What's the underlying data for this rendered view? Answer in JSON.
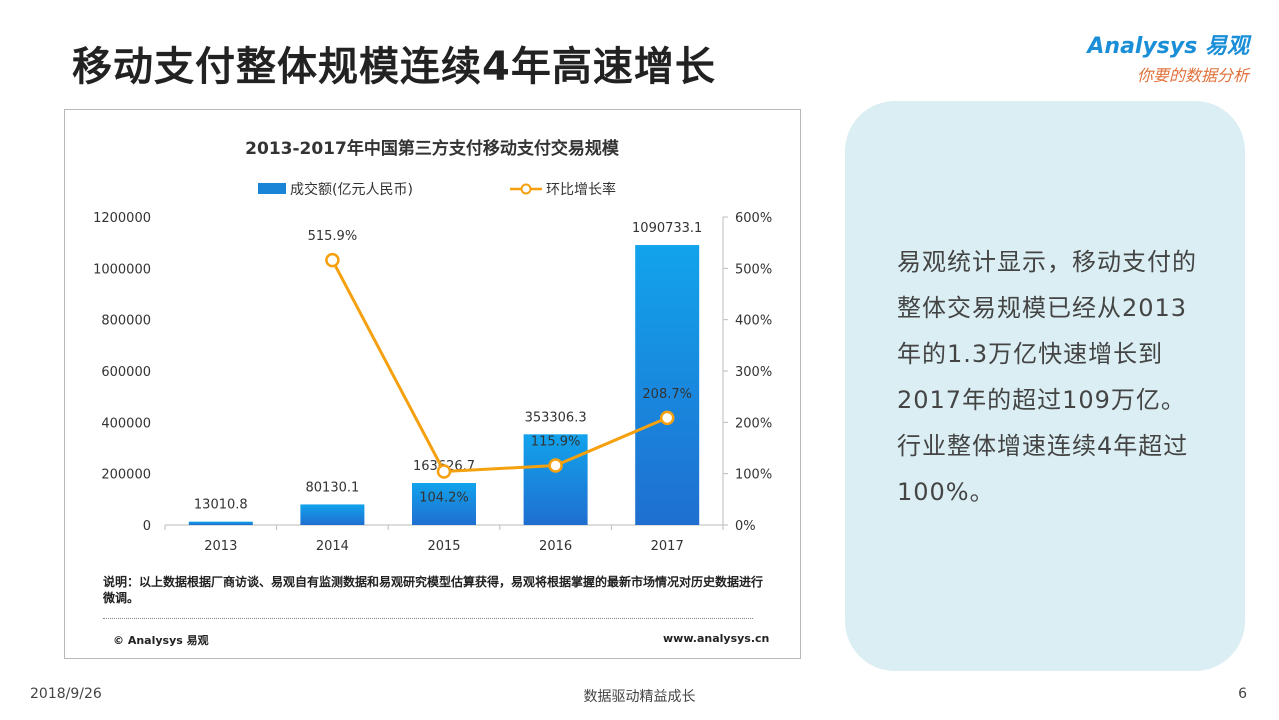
{
  "slide": {
    "title": "移动支付整体规模连续4年高速增长",
    "page_number": "6",
    "date": "2018/9/26",
    "footer_center": "数据驱动精益成长"
  },
  "logo": {
    "name": "Analysys 易观",
    "tagline": "你要的数据分析"
  },
  "chart_data": {
    "type": "bar",
    "title": "2013-2017年中国第三方支付移动支付交易规模",
    "categories": [
      "2013",
      "2014",
      "2015",
      "2016",
      "2017"
    ],
    "series": [
      {
        "name": "成交额(亿元人民币)",
        "type": "bar",
        "axis": "left",
        "values": [
          13010.8,
          80130.1,
          163626.7,
          353306.3,
          1090733.1
        ],
        "labels": [
          "13010.8",
          "80130.1",
          "163626.7",
          "353306.3",
          "1090733.1"
        ],
        "color": "#1a85d6"
      },
      {
        "name": "环比增长率",
        "type": "line",
        "axis": "right",
        "values": [
          null,
          515.9,
          104.2,
          115.9,
          208.7
        ],
        "labels": [
          "",
          "515.9%",
          "104.2%",
          "115.9%",
          "208.7%"
        ],
        "color": "#f5a00f"
      }
    ],
    "y_left": {
      "min": 0,
      "max": 1200000,
      "ticks": [
        "0",
        "200000",
        "400000",
        "600000",
        "800000",
        "1000000",
        "1200000"
      ]
    },
    "y_right": {
      "min": 0,
      "max": 600,
      "ticks": [
        "0%",
        "100%",
        "200%",
        "300%",
        "400%",
        "500%",
        "600%"
      ]
    },
    "legend_position": "top",
    "grid": false
  },
  "chart_note": "说明：以上数据根据厂商访谈、易观自有监测数据和易观研究模型估算获得，易观将根据掌握的最新市场情况对历史数据进行微调。",
  "chart_copyright": "© Analysys 易观",
  "chart_site": "www.analysys.cn",
  "summary": "易观统计显示，移动支付的整体交易规模已经从2013年的1.3万亿快速增长到2017年的超过109万亿。行业整体增速连续4年超过100%。",
  "colors": {
    "bar": "#1a85d6",
    "line": "#f5a00f",
    "panel": "#daeef3",
    "brand": "#1a8fd8"
  }
}
